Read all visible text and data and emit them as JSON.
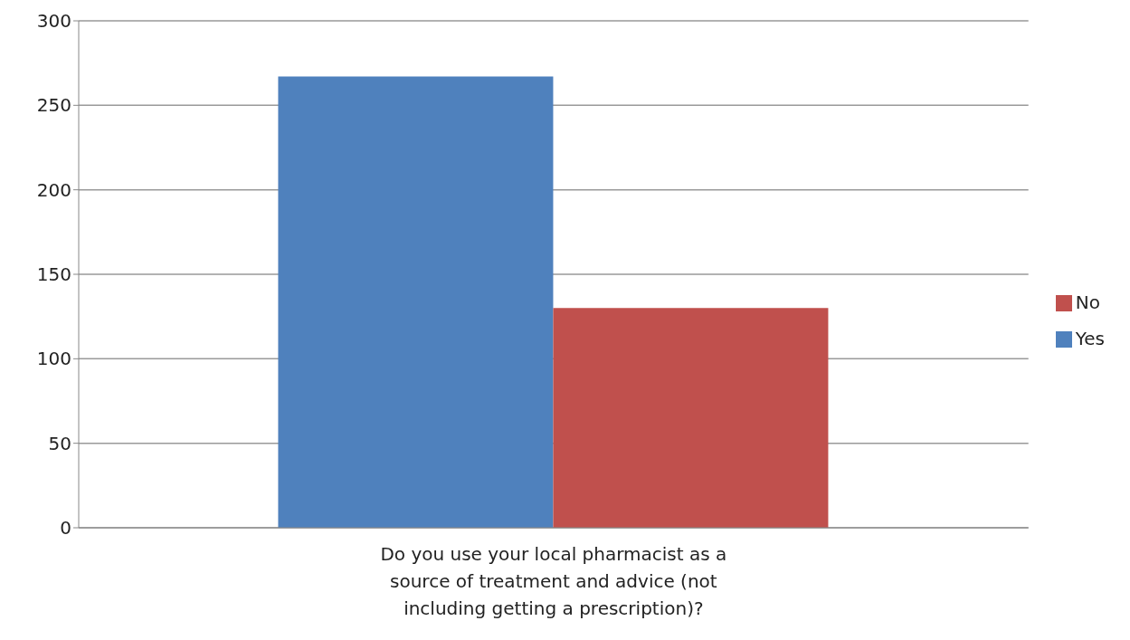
{
  "chart_data": {
    "type": "bar",
    "categories": [
      "Do you use your local pharmacist as a source of treatment and advice (not including getting a prescription)?"
    ],
    "series": [
      {
        "name": "Yes",
        "color": "#4f81bd",
        "values": [
          267
        ]
      },
      {
        "name": "No",
        "color": "#c0504d",
        "values": [
          130
        ]
      }
    ],
    "ylim": [
      0,
      300
    ],
    "yticks": [
      0,
      50,
      100,
      150,
      200,
      250,
      300
    ],
    "grid": "y",
    "legend": "right"
  }
}
